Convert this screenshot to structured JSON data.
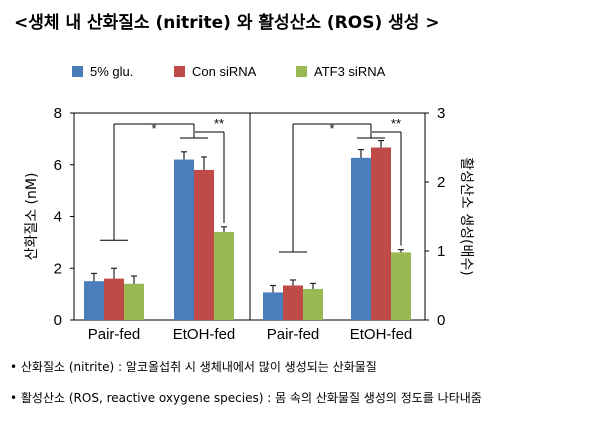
{
  "title": "<생체 내  산화질소 (nitrite) 와 활성산소 (ROS) 생성 >",
  "legend": [
    {
      "label": "5% glu.",
      "color": "#4a7ebb"
    },
    {
      "label": "Con siRNA",
      "color": "#be4b48"
    },
    {
      "label": "ATF3 siRNA",
      "color": "#98b954"
    }
  ],
  "notes": [
    "• 산화질소 (nitrite) : 알코올섭취 시 생체내에서 많이 생성되는 산화물질",
    "• 활성산소 (ROS, reactive oxygene species) : 몸 속의 산화물질 생성의 정도를 나타내줌"
  ],
  "chart_data": [
    {
      "type": "bar",
      "ylabel": "산화질소 (nM)",
      "ylim": [
        0,
        8
      ],
      "yticks": [
        "0",
        "2",
        "4",
        "6",
        "8"
      ],
      "categories": [
        "Pair-fed",
        "EtOH-fed"
      ],
      "series": [
        {
          "name": "5% glu.",
          "values": [
            1.5,
            6.2
          ],
          "errors": [
            0.3,
            0.3
          ]
        },
        {
          "name": "Con siRNA",
          "values": [
            1.6,
            5.8
          ],
          "errors": [
            0.4,
            0.5
          ]
        },
        {
          "name": "ATF3 siRNA",
          "values": [
            1.4,
            3.4
          ],
          "errors": [
            0.3,
            0.2
          ]
        }
      ],
      "significance": [
        "*",
        "**"
      ]
    },
    {
      "type": "bar",
      "ylabel": "활성산소 생성(배수)",
      "ylim": [
        0,
        3
      ],
      "yticks": [
        "0",
        "1",
        "2",
        "3"
      ],
      "categories": [
        "Pair-fed",
        "EtOH-fed"
      ],
      "series": [
        {
          "name": "5% glu.",
          "values": [
            0.4,
            2.35
          ],
          "errors": [
            0.1,
            0.12
          ]
        },
        {
          "name": "Con siRNA",
          "values": [
            0.5,
            2.5
          ],
          "errors": [
            0.08,
            0.1
          ]
        },
        {
          "name": "ATF3 siRNA",
          "values": [
            0.45,
            0.98
          ],
          "errors": [
            0.08,
            0.04
          ]
        }
      ],
      "significance": [
        "*",
        "**"
      ]
    }
  ]
}
